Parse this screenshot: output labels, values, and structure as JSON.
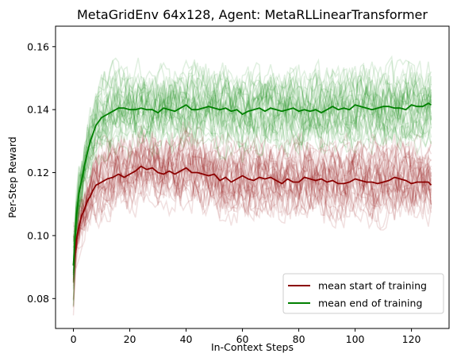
{
  "chart_data": {
    "type": "line",
    "title": "MetaGridEnv 64x128, Agent: MetaRLLinearTransformer",
    "xlabel": "In-Context Steps",
    "ylabel": "Per-Step Reward",
    "xlim": [
      -6.35,
      133.35
    ],
    "ylim": [
      0.0705,
      0.1665
    ],
    "xticks": [
      0,
      20,
      40,
      60,
      80,
      100,
      120
    ],
    "yticks": [
      0.08,
      0.1,
      0.12,
      0.14,
      0.16
    ],
    "ytick_labels": [
      "0.08",
      "0.10",
      "0.12",
      "0.14",
      "0.16"
    ],
    "grid": false,
    "legend_position": "lower-right",
    "series": [
      {
        "name": "mean start of training",
        "color": "#8b0000",
        "x": [
          0,
          1,
          2,
          3,
          4,
          5,
          6,
          7,
          8,
          10,
          12,
          14,
          16,
          18,
          20,
          22,
          24,
          26,
          28,
          30,
          32,
          34,
          36,
          38,
          40,
          42,
          44,
          46,
          48,
          50,
          52,
          54,
          56,
          58,
          60,
          62,
          64,
          66,
          68,
          70,
          72,
          74,
          76,
          78,
          80,
          82,
          84,
          86,
          88,
          90,
          92,
          94,
          96,
          98,
          100,
          102,
          104,
          106,
          108,
          110,
          112,
          114,
          116,
          118,
          120,
          122,
          124,
          126,
          127
        ],
        "y": [
          0.0905,
          0.0985,
          0.103,
          0.1065,
          0.1085,
          0.111,
          0.1125,
          0.1145,
          0.116,
          0.117,
          0.118,
          0.1185,
          0.1195,
          0.1185,
          0.1195,
          0.1205,
          0.122,
          0.121,
          0.1215,
          0.12,
          0.1195,
          0.1205,
          0.1195,
          0.1205,
          0.1215,
          0.12,
          0.12,
          0.1195,
          0.119,
          0.1195,
          0.1175,
          0.1185,
          0.117,
          0.118,
          0.119,
          0.118,
          0.1175,
          0.1185,
          0.118,
          0.1185,
          0.1175,
          0.1165,
          0.118,
          0.117,
          0.117,
          0.1185,
          0.118,
          0.1175,
          0.118,
          0.117,
          0.1175,
          0.1165,
          0.1165,
          0.117,
          0.118,
          0.1175,
          0.117,
          0.117,
          0.1165,
          0.117,
          0.1175,
          0.1185,
          0.118,
          0.1175,
          0.1165,
          0.117,
          0.117,
          0.117,
          0.116
        ]
      },
      {
        "name": "mean end of training",
        "color": "#008000",
        "x": [
          0,
          1,
          2,
          3,
          4,
          5,
          6,
          7,
          8,
          10,
          12,
          14,
          16,
          18,
          20,
          22,
          24,
          26,
          28,
          30,
          32,
          34,
          36,
          38,
          40,
          42,
          44,
          46,
          48,
          50,
          52,
          54,
          56,
          58,
          60,
          62,
          64,
          66,
          68,
          70,
          72,
          74,
          76,
          78,
          80,
          82,
          84,
          86,
          88,
          90,
          92,
          94,
          96,
          98,
          100,
          102,
          104,
          106,
          108,
          110,
          112,
          114,
          116,
          118,
          120,
          122,
          124,
          126,
          127
        ],
        "y": [
          0.0905,
          0.1055,
          0.1135,
          0.118,
          0.1225,
          0.1265,
          0.13,
          0.1325,
          0.135,
          0.1375,
          0.1385,
          0.1395,
          0.1405,
          0.1405,
          0.14,
          0.14,
          0.1405,
          0.14,
          0.14,
          0.139,
          0.1405,
          0.14,
          0.1395,
          0.1405,
          0.1415,
          0.14,
          0.14,
          0.1405,
          0.141,
          0.1405,
          0.14,
          0.1405,
          0.1395,
          0.14,
          0.1385,
          0.1395,
          0.14,
          0.1405,
          0.1395,
          0.1405,
          0.14,
          0.1395,
          0.14,
          0.1405,
          0.1395,
          0.14,
          0.1395,
          0.14,
          0.139,
          0.14,
          0.141,
          0.14,
          0.1405,
          0.14,
          0.1415,
          0.141,
          0.1405,
          0.14,
          0.1405,
          0.141,
          0.141,
          0.1405,
          0.1405,
          0.14,
          0.1415,
          0.141,
          0.141,
          0.142,
          0.1415
        ]
      }
    ],
    "faint_runs": {
      "description_visible": false,
      "start_of_training": {
        "color": "#8b0000",
        "count": 30,
        "opacity": 0.12,
        "spread": 0.006
      },
      "end_of_training": {
        "color": "#008000",
        "count": 30,
        "opacity": 0.12,
        "spread": 0.006
      }
    },
    "legend": [
      {
        "label": "mean start of training",
        "color": "#8b0000"
      },
      {
        "label": "mean end of training",
        "color": "#008000"
      }
    ]
  }
}
